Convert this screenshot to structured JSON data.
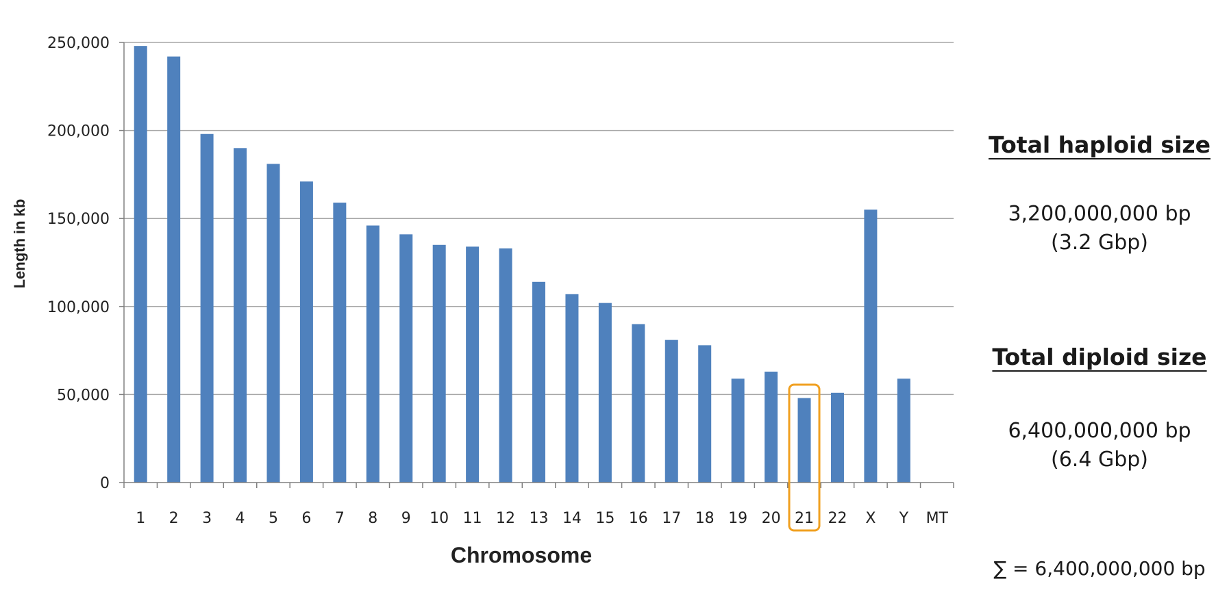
{
  "chart_data": {
    "type": "bar",
    "title": "",
    "xlabel": "Chromosome",
    "ylabel": "Length in kb",
    "ylim": [
      0,
      250000
    ],
    "yticks": [
      "0",
      "50,000",
      "100,000",
      "150,000",
      "200,000",
      "250,000"
    ],
    "ytick_values": [
      0,
      50000,
      100000,
      150000,
      200000,
      250000
    ],
    "grid": "horizontal",
    "categories": [
      "1",
      "2",
      "3",
      "4",
      "5",
      "6",
      "7",
      "8",
      "9",
      "10",
      "11",
      "12",
      "13",
      "14",
      "15",
      "16",
      "17",
      "18",
      "19",
      "20",
      "21",
      "22",
      "X",
      "Y",
      "MT"
    ],
    "values": [
      248000,
      242000,
      198000,
      190000,
      181000,
      171000,
      159000,
      146000,
      141000,
      135000,
      134000,
      133000,
      114000,
      107000,
      102000,
      90000,
      81000,
      78000,
      59000,
      63000,
      48000,
      51000,
      155000,
      59000,
      0
    ],
    "highlight_category": "21",
    "bar_color": "#4f81bd",
    "highlight_color": "#f0a020",
    "grid_color": "#a6a6a6"
  },
  "side_panel": {
    "haploid_heading": "Total haploid size",
    "haploid_value": "3,200,000,000 bp",
    "haploid_short": "(3.2 Gbp)",
    "diploid_heading": "Total diploid size",
    "diploid_value": "6,400,000,000 bp",
    "diploid_short": "(6.4 Gbp)",
    "sum_line": "∑ = 6,400,000,000 bp"
  }
}
